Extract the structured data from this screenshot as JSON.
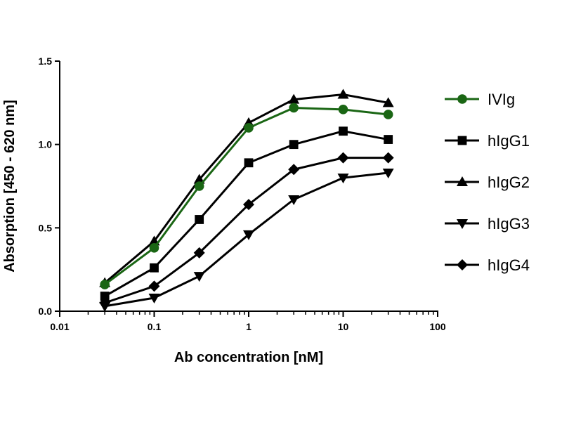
{
  "chart_data": {
    "type": "line",
    "title": "",
    "xlabel": "Ab concentration [nM]",
    "ylabel": "Absorption [450 - 620 nm]",
    "xscale": "log",
    "xlim": [
      0.01,
      100
    ],
    "ylim": [
      0,
      1.5
    ],
    "xticks": [
      0.01,
      0.1,
      1,
      10,
      100
    ],
    "xtick_labels": [
      "0.01",
      "0.1",
      "1",
      "10",
      "100"
    ],
    "yticks": [
      0,
      0.5,
      1.0,
      1.5
    ],
    "ytick_labels": [
      "0.0",
      "0.5",
      "1.0",
      "1.5"
    ],
    "grid": false,
    "legend_position": "right",
    "x": [
      0.03,
      0.1,
      0.3,
      1,
      3,
      10,
      30
    ],
    "series": [
      {
        "name": "IVIg",
        "marker": "circle",
        "color": "#1a6614",
        "values": [
          0.16,
          0.38,
          0.75,
          1.1,
          1.22,
          1.21,
          1.18
        ]
      },
      {
        "name": "hIgG1",
        "marker": "square",
        "color": "#000000",
        "values": [
          0.09,
          0.26,
          0.55,
          0.89,
          1.0,
          1.08,
          1.03
        ]
      },
      {
        "name": "hIgG2",
        "marker": "triangle-up",
        "color": "#000000",
        "values": [
          0.17,
          0.42,
          0.79,
          1.13,
          1.27,
          1.3,
          1.25
        ]
      },
      {
        "name": "hIgG3",
        "marker": "triangle-down",
        "color": "#000000",
        "values": [
          0.03,
          0.08,
          0.21,
          0.46,
          0.67,
          0.8,
          0.83
        ]
      },
      {
        "name": "hIgG4",
        "marker": "diamond",
        "color": "#000000",
        "values": [
          0.05,
          0.15,
          0.35,
          0.64,
          0.85,
          0.92,
          0.92
        ]
      }
    ]
  }
}
